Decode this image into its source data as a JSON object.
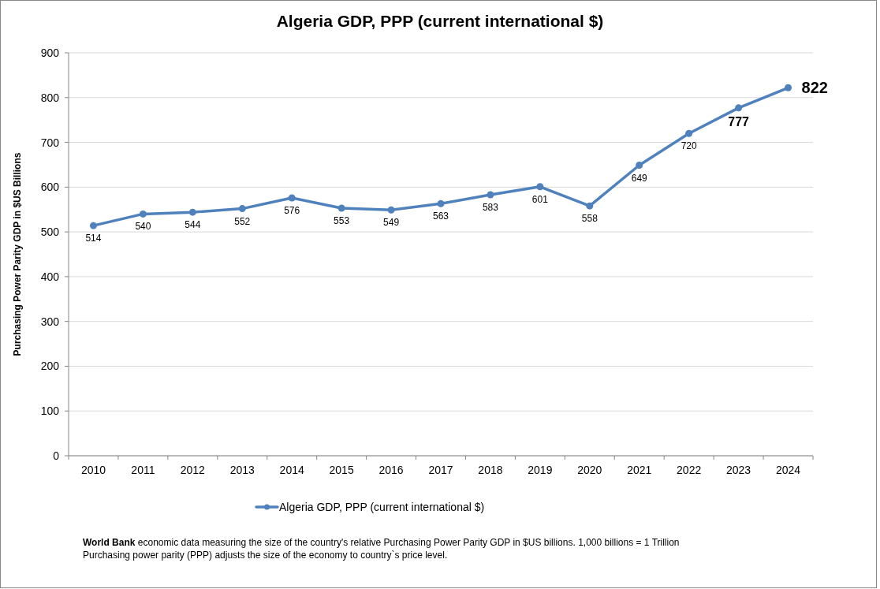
{
  "chart_data": {
    "type": "line",
    "title": "Algeria GDP, PPP (current international $)",
    "ylabel": "Purchasing Power Parity GDP in $US Billions",
    "categories": [
      "2010",
      "2011",
      "2012",
      "2013",
      "2014",
      "2015",
      "2016",
      "2017",
      "2018",
      "2019",
      "2020",
      "2021",
      "2022",
      "2023",
      "2024"
    ],
    "series": [
      {
        "name": "Algeria GDP, PPP (current international $)",
        "color": "#4f81bd",
        "values": [
          514,
          540,
          544,
          552,
          576,
          553,
          549,
          563,
          583,
          601,
          558,
          649,
          720,
          777,
          822
        ]
      }
    ],
    "ylim": [
      0,
      900
    ],
    "yticks": [
      0,
      100,
      200,
      300,
      400,
      500,
      600,
      700,
      800,
      900
    ],
    "grid": "y",
    "legend": "bottom",
    "marker": "circle",
    "line_style": "solid",
    "data_labels": true,
    "annotations": [
      "World Bank",
      "economic data  measuring the size of the country's relative  Purchasing Power Parity GDP in $US billions. 1,000 billions = 1 Trillion",
      "Purchasing power parity (PPP) adjusts the size of the economy to country`s price level."
    ]
  }
}
